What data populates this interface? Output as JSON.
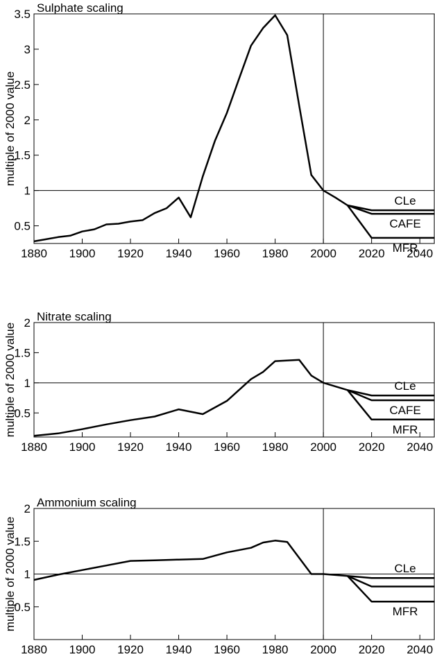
{
  "chart_data": [
    {
      "type": "line",
      "title": "Sulphate scaling",
      "ylabel": "multiple of 2000 value",
      "x": [
        1880,
        1885,
        1890,
        1895,
        1900,
        1905,
        1910,
        1915,
        1920,
        1925,
        1930,
        1935,
        1940,
        1945,
        1950,
        1955,
        1960,
        1965,
        1970,
        1975,
        1980,
        1985,
        1990,
        1995,
        2000,
        2005,
        2010,
        2020,
        2046
      ],
      "series": [
        {
          "color": "#000000",
          "values": [
            0.28,
            0.31,
            0.34,
            0.36,
            0.42,
            0.45,
            0.52,
            0.53,
            0.56,
            0.58,
            0.68,
            0.75,
            0.9,
            0.62,
            1.2,
            1.7,
            2.1,
            2.58,
            3.05,
            3.3,
            3.48,
            3.2,
            2.2,
            1.22,
            1.0,
            0.9,
            0.79,
            null,
            null
          ]
        },
        {
          "name": "CLe",
          "color": "#000000",
          "values": [
            null,
            null,
            null,
            null,
            null,
            null,
            null,
            null,
            null,
            null,
            null,
            null,
            null,
            null,
            null,
            null,
            null,
            null,
            null,
            null,
            null,
            null,
            null,
            null,
            null,
            null,
            0.79,
            0.72,
            0.72
          ]
        },
        {
          "name": "CAFE",
          "color": "#000000",
          "values": [
            null,
            null,
            null,
            null,
            null,
            null,
            null,
            null,
            null,
            null,
            null,
            null,
            null,
            null,
            null,
            null,
            null,
            null,
            null,
            null,
            null,
            null,
            null,
            null,
            null,
            null,
            0.79,
            0.67,
            0.67
          ]
        },
        {
          "name": "MFR",
          "color": "#000000",
          "values": [
            null,
            null,
            null,
            null,
            null,
            null,
            null,
            null,
            null,
            null,
            null,
            null,
            null,
            null,
            null,
            null,
            null,
            null,
            null,
            null,
            null,
            null,
            null,
            null,
            null,
            null,
            0.79,
            0.33,
            0.33
          ]
        }
      ],
      "xlim": [
        1880,
        2046
      ],
      "xticks": [
        1880,
        1900,
        1920,
        1940,
        1960,
        1980,
        2000,
        2020,
        2040
      ],
      "ylim": [
        0.25,
        3.5
      ],
      "yticks": [
        0.5,
        1.0,
        1.5,
        2.0,
        2.5,
        3.0,
        3.5
      ],
      "hline": 1.0,
      "vline": 2000
    },
    {
      "type": "line",
      "title": "Nitrate scaling",
      "ylabel": "multiple of 2000 value",
      "x": [
        1880,
        1890,
        1900,
        1910,
        1920,
        1930,
        1940,
        1950,
        1960,
        1970,
        1975,
        1980,
        1990,
        1995,
        2000,
        2010,
        2020,
        2046
      ],
      "series": [
        {
          "color": "#000000",
          "values": [
            0.12,
            0.16,
            0.23,
            0.31,
            0.38,
            0.44,
            0.56,
            0.48,
            0.7,
            1.06,
            1.18,
            1.36,
            1.38,
            1.12,
            1.0,
            0.88,
            null,
            null
          ]
        },
        {
          "name": "CLe",
          "color": "#000000",
          "values": [
            null,
            null,
            null,
            null,
            null,
            null,
            null,
            null,
            null,
            null,
            null,
            null,
            null,
            null,
            null,
            0.88,
            0.79,
            0.79
          ]
        },
        {
          "name": "CAFE",
          "color": "#000000",
          "values": [
            null,
            null,
            null,
            null,
            null,
            null,
            null,
            null,
            null,
            null,
            null,
            null,
            null,
            null,
            null,
            0.88,
            0.71,
            0.71
          ]
        },
        {
          "name": "MFR",
          "color": "#000000",
          "values": [
            null,
            null,
            null,
            null,
            null,
            null,
            null,
            null,
            null,
            null,
            null,
            null,
            null,
            null,
            null,
            0.88,
            0.39,
            0.39
          ]
        }
      ],
      "xlim": [
        1880,
        2046
      ],
      "xticks": [
        1880,
        1900,
        1920,
        1940,
        1960,
        1980,
        2000,
        2020,
        2040
      ],
      "ylim": [
        0.1,
        2.0
      ],
      "yticks": [
        0.5,
        1.0,
        1.5,
        2.0
      ],
      "hline": 1.0,
      "vline": 2000
    },
    {
      "type": "line",
      "title": "Ammonium scaling",
      "ylabel": "multiple of 2000 value",
      "x": [
        1880,
        1890,
        1900,
        1910,
        1920,
        1930,
        1940,
        1950,
        1960,
        1970,
        1975,
        1980,
        1985,
        1995,
        2000,
        2010,
        2020,
        2046
      ],
      "series": [
        {
          "color": "#000000",
          "values": [
            0.91,
            0.99,
            1.06,
            1.13,
            1.2,
            1.21,
            1.22,
            1.23,
            1.33,
            1.4,
            1.48,
            1.51,
            1.49,
            1.0,
            1.0,
            0.97,
            null,
            null
          ]
        },
        {
          "name": "CLe",
          "color": "#000000",
          "values": [
            null,
            null,
            null,
            null,
            null,
            null,
            null,
            null,
            null,
            null,
            null,
            null,
            null,
            null,
            null,
            0.97,
            0.94,
            0.94
          ]
        },
        {
          "color": "#000000",
          "values": [
            null,
            null,
            null,
            null,
            null,
            null,
            null,
            null,
            null,
            null,
            null,
            null,
            null,
            null,
            null,
            0.97,
            0.81,
            0.81
          ]
        },
        {
          "name": "MFR",
          "color": "#000000",
          "values": [
            null,
            null,
            null,
            null,
            null,
            null,
            null,
            null,
            null,
            null,
            null,
            null,
            null,
            null,
            null,
            0.97,
            0.58,
            0.58
          ]
        }
      ],
      "xlim": [
        1880,
        2046
      ],
      "xticks": [
        1880,
        1900,
        1920,
        1940,
        1960,
        1980,
        2000,
        2020,
        2040
      ],
      "ylim": [
        0.0,
        2.0
      ],
      "yticks": [
        0.5,
        1.0,
        1.5,
        2.0
      ],
      "hline": 1.0,
      "vline": 2000
    }
  ]
}
